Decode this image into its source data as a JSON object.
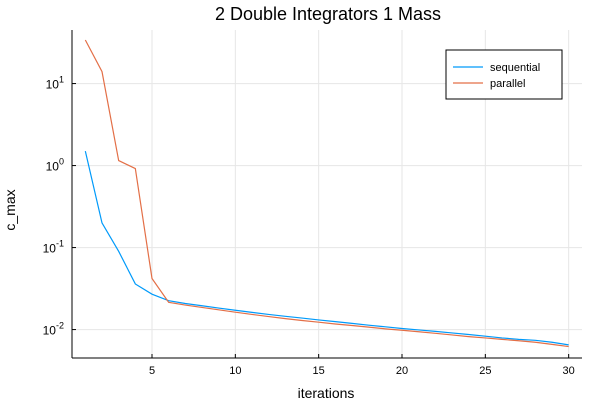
{
  "chart_data": {
    "type": "line",
    "title": "2 Double Integrators 1 Mass",
    "xlabel": "iterations",
    "ylabel": "c_max",
    "yscale": "log10",
    "xlim": [
      0.2,
      30.8
    ],
    "ylim": [
      0.0045,
      45
    ],
    "x_ticks": [
      5,
      10,
      15,
      20,
      25,
      30
    ],
    "y_ticks": [
      {
        "value": 0.01,
        "base": "10",
        "exp": "-2"
      },
      {
        "value": 0.1,
        "base": "10",
        "exp": "-1"
      },
      {
        "value": 1,
        "base": "10",
        "exp": "0"
      },
      {
        "value": 10,
        "base": "10",
        "exp": "1"
      }
    ],
    "grid": true,
    "legend_position": "top-right",
    "series": [
      {
        "name": "sequential",
        "color": "#009AFA",
        "x": [
          1,
          2,
          3,
          4,
          5,
          6,
          7,
          8,
          9,
          10,
          11,
          12,
          13,
          14,
          15,
          16,
          17,
          18,
          19,
          20,
          21,
          22,
          23,
          24,
          25,
          26,
          27,
          28,
          29,
          30
        ],
        "y": [
          1.5,
          0.2,
          0.09,
          0.036,
          0.027,
          0.0225,
          0.0208,
          0.0195,
          0.0183,
          0.0172,
          0.0162,
          0.0153,
          0.0145,
          0.0138,
          0.0131,
          0.0125,
          0.0119,
          0.0113,
          0.0108,
          0.0103,
          0.0099,
          0.0095,
          0.0091,
          0.0087,
          0.0083,
          0.0079,
          0.0076,
          0.0074,
          0.007,
          0.0065
        ]
      },
      {
        "name": "parallel",
        "color": "#E36F47",
        "x": [
          1,
          2,
          3,
          4,
          5,
          6,
          7,
          8,
          9,
          10,
          11,
          12,
          13,
          14,
          15,
          16,
          17,
          18,
          19,
          20,
          21,
          22,
          23,
          24,
          25,
          26,
          27,
          28,
          29,
          30
        ],
        "y": [
          34,
          14,
          1.15,
          0.92,
          0.042,
          0.0215,
          0.0199,
          0.0186,
          0.0174,
          0.0163,
          0.0153,
          0.0144,
          0.0136,
          0.0129,
          0.0123,
          0.0117,
          0.0112,
          0.0107,
          0.0102,
          0.0098,
          0.0094,
          0.009,
          0.0086,
          0.0082,
          0.0079,
          0.0076,
          0.0073,
          0.007,
          0.0066,
          0.0062
        ]
      }
    ]
  }
}
